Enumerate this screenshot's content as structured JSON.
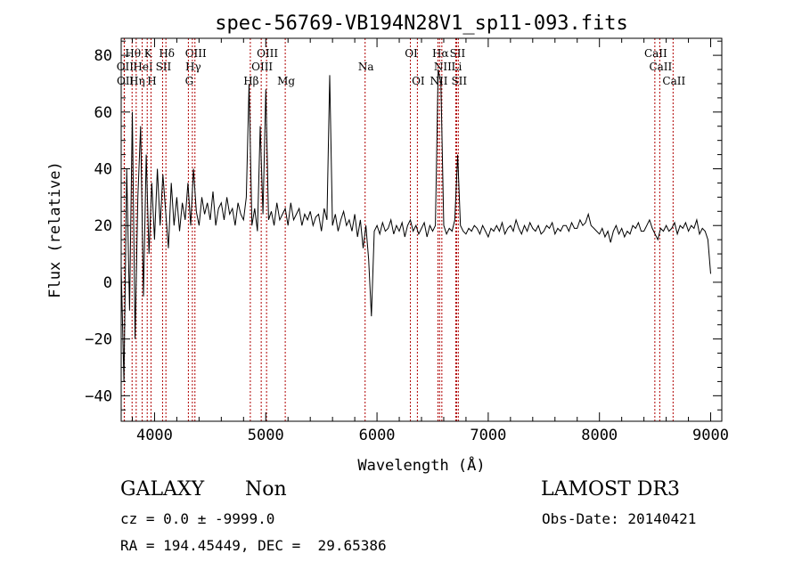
{
  "chart_data": {
    "type": "line",
    "title": "spec-56769-VB194N28V1_sp11-093.fits",
    "xlabel": "Wavelength (Å)",
    "ylabel": "Flux (relative)",
    "xlim": [
      3700,
      9100
    ],
    "ylim": [
      -49,
      86
    ],
    "xticks": [
      4000,
      5000,
      6000,
      7000,
      8000,
      9000
    ],
    "yticks": [
      -40,
      -20,
      0,
      20,
      40,
      60,
      80
    ],
    "grid": false,
    "series": [
      {
        "name": "flux",
        "x_start": 3700,
        "x_step": 25,
        "values": [
          5,
          -35,
          40,
          -10,
          60,
          -20,
          30,
          55,
          -5,
          45,
          10,
          35,
          15,
          40,
          20,
          38,
          25,
          12,
          35,
          20,
          30,
          18,
          28,
          22,
          35,
          20,
          40,
          25,
          20,
          30,
          24,
          28,
          22,
          32,
          20,
          26,
          28,
          22,
          30,
          24,
          26,
          20,
          28,
          24,
          22,
          30,
          70,
          20,
          26,
          18,
          55,
          24,
          68,
          22,
          25,
          20,
          28,
          22,
          24,
          26,
          20,
          28,
          22,
          24,
          26,
          20,
          24,
          22,
          25,
          20,
          23,
          24,
          18,
          26,
          22,
          73,
          20,
          24,
          18,
          22,
          25,
          20,
          22,
          18,
          24,
          16,
          22,
          12,
          20,
          8,
          -12,
          18,
          20,
          17,
          21,
          18,
          19,
          22,
          17,
          20,
          18,
          21,
          16,
          20,
          22,
          18,
          20,
          17,
          19,
          21,
          16,
          20,
          18,
          20,
          75,
          70,
          20,
          17,
          19,
          18,
          22,
          45,
          20,
          18,
          17,
          19,
          18,
          20,
          19,
          17,
          20,
          18,
          16,
          19,
          18,
          20,
          18,
          21,
          17,
          19,
          20,
          18,
          22,
          19,
          17,
          20,
          18,
          21,
          19,
          18,
          20,
          17,
          18,
          20,
          19,
          21,
          17,
          19,
          18,
          20,
          20,
          18,
          21,
          19,
          19,
          22,
          20,
          21,
          24,
          20,
          19,
          18,
          17,
          19,
          16,
          18,
          14,
          18,
          20,
          17,
          19,
          16,
          18,
          17,
          20,
          19,
          21,
          18,
          18,
          20,
          22,
          19,
          17,
          15,
          19,
          18,
          20,
          18,
          19,
          21,
          17,
          20,
          19,
          21,
          18,
          20,
          19,
          22,
          17,
          19,
          18,
          15,
          3
        ]
      }
    ],
    "line_markers": [
      {
        "label": "Hθ",
        "wave": 3798,
        "row": 0
      },
      {
        "label": "K",
        "wave": 3934,
        "row": 0
      },
      {
        "label": "Hδ",
        "wave": 4102,
        "row": 0
      },
      {
        "label": "OIII",
        "wave": 4363,
        "row": 0
      },
      {
        "label": "OIII",
        "wave": 5007,
        "row": 0
      },
      {
        "label": "OI",
        "wave": 6300,
        "row": 0
      },
      {
        "label": "Hα",
        "wave": 6563,
        "row": 0
      },
      {
        "label": "SII",
        "wave": 6716,
        "row": 0
      },
      {
        "label": "CaII",
        "wave": 8498,
        "row": 0
      },
      {
        "label": "OII",
        "wave": 3727,
        "row": 1
      },
      {
        "label": "HeI",
        "wave": 3889,
        "row": 1
      },
      {
        "label": "SII",
        "wave": 4072,
        "row": 1
      },
      {
        "label": "Hγ",
        "wave": 4340,
        "row": 1
      },
      {
        "label": "OIII",
        "wave": 4959,
        "row": 1
      },
      {
        "label": "Na",
        "wave": 5893,
        "row": 1
      },
      {
        "label": "NII",
        "wave": 6583,
        "row": 1
      },
      {
        "label": "Li",
        "wave": 6708,
        "row": 1
      },
      {
        "label": "CaII",
        "wave": 8542,
        "row": 1
      },
      {
        "label": "OII",
        "wave": 3729,
        "row": 2
      },
      {
        "label": "Hη",
        "wave": 3835,
        "row": 2
      },
      {
        "label": "H",
        "wave": 3968,
        "row": 2
      },
      {
        "label": "G",
        "wave": 4304,
        "row": 2
      },
      {
        "label": "Hβ",
        "wave": 4861,
        "row": 2
      },
      {
        "label": "Mg",
        "wave": 5175,
        "row": 2
      },
      {
        "label": "OI",
        "wave": 6363,
        "row": 2
      },
      {
        "label": "NII",
        "wave": 6548,
        "row": 2
      },
      {
        "label": "SII",
        "wave": 6731,
        "row": 2
      },
      {
        "label": "CaII",
        "wave": 8662,
        "row": 2
      }
    ],
    "marker_color": "#b00000"
  },
  "footer": {
    "class": "GALAXY",
    "subclass": "Non",
    "survey": "LAMOST DR3",
    "cz": "cz = 0.0 ± -9999.0",
    "obs_date": "Obs-Date: 20140421",
    "coords": "RA = 194.45449, DEC =  29.65386"
  }
}
